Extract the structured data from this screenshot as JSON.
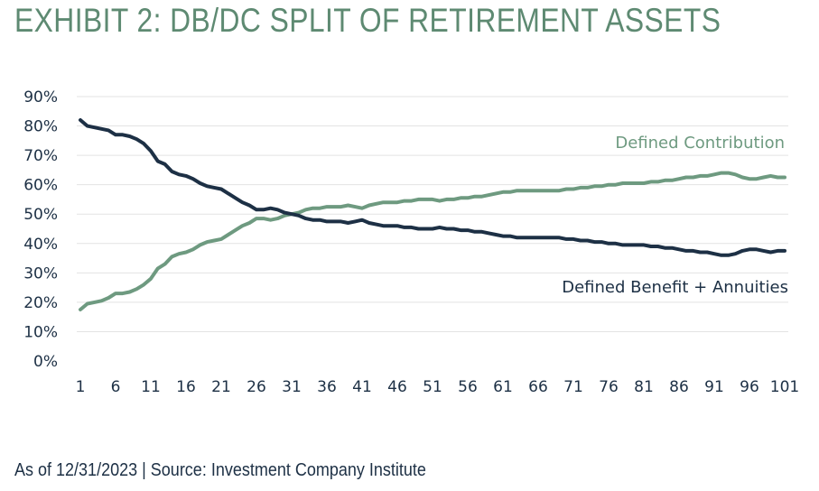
{
  "title": "EXHIBIT 2: DB/DC SPLIT OF RETIREMENT ASSETS",
  "footnote": "As of 12/31/2023 | Source: Investment Company Institute",
  "colors": {
    "title": "#5e8a72",
    "dc": "#6e9a80",
    "db": "#1d3045",
    "grid": "#e3e3e3"
  },
  "chart_data": {
    "type": "line",
    "x_ticks": [
      "1",
      "6",
      "11",
      "16",
      "21",
      "26",
      "31",
      "36",
      "41",
      "46",
      "51",
      "56",
      "61",
      "66",
      "71",
      "76",
      "81",
      "86",
      "91",
      "96",
      "101"
    ],
    "y_ticks": [
      "90%",
      "80%",
      "70%",
      "60%",
      "50%",
      "40%",
      "30%",
      "20%",
      "10%",
      "0%"
    ],
    "xlim": [
      1,
      101
    ],
    "ylim": [
      0,
      90
    ],
    "grid": true,
    "series": [
      {
        "name": "Defined Contribution",
        "points": [
          [
            1,
            17.5
          ],
          [
            2,
            19.5
          ],
          [
            3,
            20
          ],
          [
            4,
            20.5
          ],
          [
            5,
            21.5
          ],
          [
            6,
            23
          ],
          [
            7,
            23
          ],
          [
            8,
            23.5
          ],
          [
            9,
            24.5
          ],
          [
            10,
            26
          ],
          [
            11,
            28
          ],
          [
            12,
            31.5
          ],
          [
            13,
            33
          ],
          [
            14,
            35.5
          ],
          [
            15,
            36.5
          ],
          [
            16,
            37
          ],
          [
            17,
            38
          ],
          [
            18,
            39.5
          ],
          [
            19,
            40.5
          ],
          [
            20,
            41
          ],
          [
            21,
            41.5
          ],
          [
            22,
            43
          ],
          [
            23,
            44.5
          ],
          [
            24,
            46
          ],
          [
            25,
            47
          ],
          [
            26,
            48.5
          ],
          [
            27,
            48.5
          ],
          [
            28,
            48
          ],
          [
            29,
            48.5
          ],
          [
            30,
            49.5
          ],
          [
            31,
            50
          ],
          [
            32,
            50.5
          ],
          [
            33,
            51.5
          ],
          [
            34,
            52
          ],
          [
            35,
            52
          ],
          [
            36,
            52.5
          ],
          [
            37,
            52.5
          ],
          [
            38,
            52.5
          ],
          [
            39,
            53
          ],
          [
            40,
            52.5
          ],
          [
            41,
            52
          ],
          [
            42,
            53
          ],
          [
            43,
            53.5
          ],
          [
            44,
            54
          ],
          [
            45,
            54
          ],
          [
            46,
            54
          ],
          [
            47,
            54.5
          ],
          [
            48,
            54.5
          ],
          [
            49,
            55
          ],
          [
            50,
            55
          ],
          [
            51,
            55
          ],
          [
            52,
            54.5
          ],
          [
            53,
            55
          ],
          [
            54,
            55
          ],
          [
            55,
            55.5
          ],
          [
            56,
            55.5
          ],
          [
            57,
            56
          ],
          [
            58,
            56
          ],
          [
            59,
            56.5
          ],
          [
            60,
            57
          ],
          [
            61,
            57.5
          ],
          [
            62,
            57.5
          ],
          [
            63,
            58
          ],
          [
            64,
            58
          ],
          [
            65,
            58
          ],
          [
            66,
            58
          ],
          [
            67,
            58
          ],
          [
            68,
            58
          ],
          [
            69,
            58
          ],
          [
            70,
            58.5
          ],
          [
            71,
            58.5
          ],
          [
            72,
            59
          ],
          [
            73,
            59
          ],
          [
            74,
            59.5
          ],
          [
            75,
            59.5
          ],
          [
            76,
            60
          ],
          [
            77,
            60
          ],
          [
            78,
            60.5
          ],
          [
            79,
            60.5
          ],
          [
            80,
            60.5
          ],
          [
            81,
            60.5
          ],
          [
            82,
            61
          ],
          [
            83,
            61
          ],
          [
            84,
            61.5
          ],
          [
            85,
            61.5
          ],
          [
            86,
            62
          ],
          [
            87,
            62.5
          ],
          [
            88,
            62.5
          ],
          [
            89,
            63
          ],
          [
            90,
            63
          ],
          [
            91,
            63.5
          ],
          [
            92,
            64
          ],
          [
            93,
            64
          ],
          [
            94,
            63.5
          ],
          [
            95,
            62.5
          ],
          [
            96,
            62
          ],
          [
            97,
            62
          ],
          [
            98,
            62.5
          ],
          [
            99,
            63
          ],
          [
            100,
            62.5
          ],
          [
            101,
            62.5
          ]
        ]
      },
      {
        "name": "Defined Benefit + Annuities",
        "points": [
          [
            1,
            82
          ],
          [
            2,
            80
          ],
          [
            3,
            79.5
          ],
          [
            4,
            79
          ],
          [
            5,
            78.5
          ],
          [
            6,
            77
          ],
          [
            7,
            77
          ],
          [
            8,
            76.5
          ],
          [
            9,
            75.5
          ],
          [
            10,
            74
          ],
          [
            11,
            71.5
          ],
          [
            12,
            68
          ],
          [
            13,
            67
          ],
          [
            14,
            64.5
          ],
          [
            15,
            63.5
          ],
          [
            16,
            63
          ],
          [
            17,
            62
          ],
          [
            18,
            60.5
          ],
          [
            19,
            59.5
          ],
          [
            20,
            59
          ],
          [
            21,
            58.5
          ],
          [
            22,
            57
          ],
          [
            23,
            55.5
          ],
          [
            24,
            54
          ],
          [
            25,
            53
          ],
          [
            26,
            51.5
          ],
          [
            27,
            51.5
          ],
          [
            28,
            52
          ],
          [
            29,
            51.5
          ],
          [
            30,
            50.5
          ],
          [
            31,
            50
          ],
          [
            32,
            49.5
          ],
          [
            33,
            48.5
          ],
          [
            34,
            48
          ],
          [
            35,
            48
          ],
          [
            36,
            47.5
          ],
          [
            37,
            47.5
          ],
          [
            38,
            47.5
          ],
          [
            39,
            47
          ],
          [
            40,
            47.5
          ],
          [
            41,
            48
          ],
          [
            42,
            47
          ],
          [
            43,
            46.5
          ],
          [
            44,
            46
          ],
          [
            45,
            46
          ],
          [
            46,
            46
          ],
          [
            47,
            45.5
          ],
          [
            48,
            45.5
          ],
          [
            49,
            45
          ],
          [
            50,
            45
          ],
          [
            51,
            45
          ],
          [
            52,
            45.5
          ],
          [
            53,
            45
          ],
          [
            54,
            45
          ],
          [
            55,
            44.5
          ],
          [
            56,
            44.5
          ],
          [
            57,
            44
          ],
          [
            58,
            44
          ],
          [
            59,
            43.5
          ],
          [
            60,
            43
          ],
          [
            61,
            42.5
          ],
          [
            62,
            42.5
          ],
          [
            63,
            42
          ],
          [
            64,
            42
          ],
          [
            65,
            42
          ],
          [
            66,
            42
          ],
          [
            67,
            42
          ],
          [
            68,
            42
          ],
          [
            69,
            42
          ],
          [
            70,
            41.5
          ],
          [
            71,
            41.5
          ],
          [
            72,
            41
          ],
          [
            73,
            41
          ],
          [
            74,
            40.5
          ],
          [
            75,
            40.5
          ],
          [
            76,
            40
          ],
          [
            77,
            40
          ],
          [
            78,
            39.5
          ],
          [
            79,
            39.5
          ],
          [
            80,
            39.5
          ],
          [
            81,
            39.5
          ],
          [
            82,
            39
          ],
          [
            83,
            39
          ],
          [
            84,
            38.5
          ],
          [
            85,
            38.5
          ],
          [
            86,
            38
          ],
          [
            87,
            37.5
          ],
          [
            88,
            37.5
          ],
          [
            89,
            37
          ],
          [
            90,
            37
          ],
          [
            91,
            36.5
          ],
          [
            92,
            36
          ],
          [
            93,
            36
          ],
          [
            94,
            36.5
          ],
          [
            95,
            37.5
          ],
          [
            96,
            38
          ],
          [
            97,
            38
          ],
          [
            98,
            37.5
          ],
          [
            99,
            37
          ],
          [
            100,
            37.5
          ],
          [
            101,
            37.5
          ]
        ]
      }
    ]
  }
}
